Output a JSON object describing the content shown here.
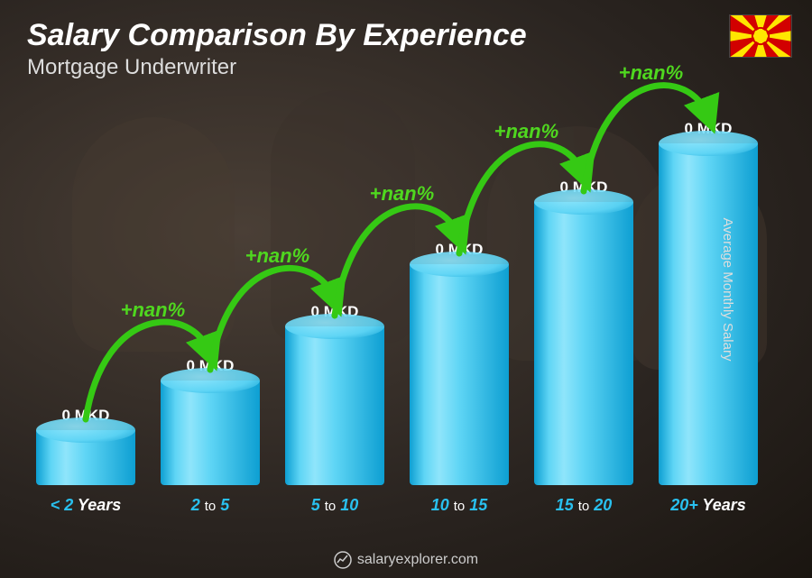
{
  "title": "Salary Comparison By Experience",
  "subtitle": "Mortgage Underwriter",
  "y_axis_label": "Average Monthly Salary",
  "footer_text": "salaryexplorer.com",
  "flag": {
    "country": "North Macedonia",
    "bg_color": "#d20000",
    "sun_color": "#ffe600"
  },
  "chart": {
    "type": "bar",
    "bar_fill_top": "#5fd5f5",
    "bar_fill_bottom": "#0d9fd2",
    "bar_highlight": "#8fe5fb",
    "background_color": "#2a2420",
    "arrow_color": "#35c914",
    "arrow_label_color": "#4fd71f",
    "text_color": "#ffffff",
    "bottom_label_highlight": "#29c0ef",
    "bars": [
      {
        "category_pre": "< 2",
        "category_post": "Years",
        "value_label": "0 MKD",
        "height_pct": 24,
        "increase_label": null
      },
      {
        "category_pre": "2",
        "category_mid": "to",
        "category_post": "5",
        "value_label": "0 MKD",
        "height_pct": 36,
        "increase_label": "+nan%"
      },
      {
        "category_pre": "5",
        "category_mid": "to",
        "category_post": "10",
        "value_label": "0 MKD",
        "height_pct": 49,
        "increase_label": "+nan%"
      },
      {
        "category_pre": "10",
        "category_mid": "to",
        "category_post": "15",
        "value_label": "0 MKD",
        "height_pct": 64,
        "increase_label": "+nan%"
      },
      {
        "category_pre": "15",
        "category_mid": "to",
        "category_post": "20",
        "value_label": "0 MKD",
        "height_pct": 79,
        "increase_label": "+nan%"
      },
      {
        "category_pre": "20+",
        "category_post": "Years",
        "value_label": "0 MKD",
        "height_pct": 93,
        "increase_label": "+nan%"
      }
    ]
  }
}
